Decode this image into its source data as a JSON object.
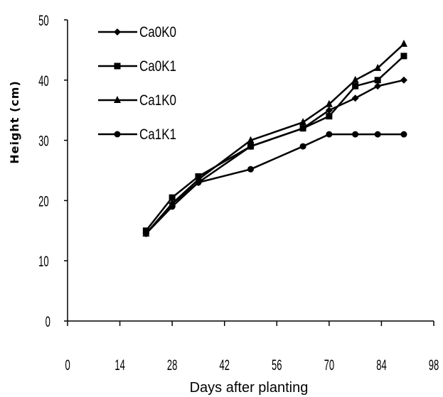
{
  "chart_data": {
    "type": "line",
    "title": "",
    "xlabel": "Days after planting",
    "ylabel": "Height (cm)",
    "xlim": [
      0,
      98
    ],
    "ylim": [
      0,
      50
    ],
    "x_ticks": [
      0,
      14,
      28,
      42,
      56,
      70,
      84,
      98
    ],
    "y_ticks": [
      0,
      10,
      20,
      30,
      40,
      50
    ],
    "x_tick_labels": [
      "0",
      "14",
      "28",
      "42",
      "56",
      "70",
      "84",
      "98"
    ],
    "y_tick_labels": [
      "0",
      "10",
      "20",
      "30",
      "40",
      "50"
    ],
    "grid": false,
    "legend_position": "top-left",
    "series": [
      {
        "name": "Ca0K0",
        "marker": "diamond",
        "x": [
          21,
          28,
          35,
          49,
          63,
          70,
          77,
          83,
          90
        ],
        "values": [
          14.5,
          19.5,
          23,
          29,
          32,
          35,
          37,
          39,
          40
        ]
      },
      {
        "name": "Ca0K1",
        "marker": "square",
        "x": [
          21,
          28,
          35,
          49,
          63,
          70,
          77,
          83,
          90
        ],
        "values": [
          15,
          20.5,
          24,
          29,
          32,
          34,
          39,
          40,
          44
        ]
      },
      {
        "name": "Ca1K0",
        "marker": "triangle",
        "x": [
          21,
          28,
          35,
          49,
          63,
          70,
          77,
          83,
          90
        ],
        "values": [
          14.5,
          19.5,
          23.5,
          30,
          33,
          36,
          40,
          42,
          46
        ]
      },
      {
        "name": "Ca1K1",
        "marker": "circle",
        "x": [
          21,
          28,
          35,
          49,
          63,
          70,
          77,
          83,
          90
        ],
        "values": [
          14.5,
          19,
          23,
          25.2,
          29,
          31,
          31,
          31,
          31
        ]
      }
    ]
  }
}
